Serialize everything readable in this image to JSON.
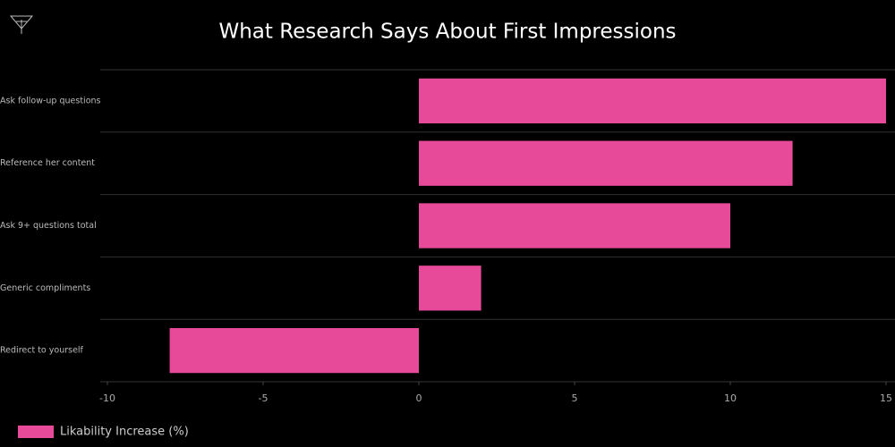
{
  "chart_data": {
    "type": "bar",
    "orientation": "horizontal",
    "title": "What Research Says About First Impressions",
    "categories": [
      "Ask follow-up questions",
      "Reference her content",
      "Ask 9+ questions total",
      "Generic compliments",
      "Redirect to yourself"
    ],
    "series": [
      {
        "name": "Likability Increase (%)",
        "color": "#e84a9a",
        "values": [
          15,
          12,
          10,
          2,
          -8
        ]
      }
    ],
    "xlim": [
      -10,
      15
    ],
    "xticks": [
      -10,
      -5,
      0,
      5,
      10,
      15
    ],
    "legend": "bottom-left"
  }
}
